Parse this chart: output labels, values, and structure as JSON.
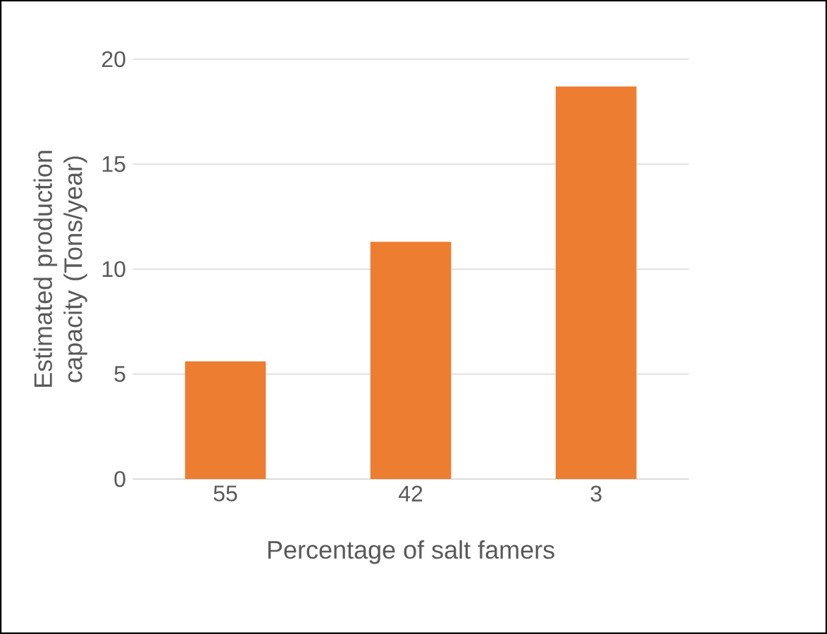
{
  "chart_data": {
    "type": "bar",
    "xlabel": "Percentage of salt famers",
    "ylabel": "Estimated production capacity (Tons/year)",
    "categories": [
      "55",
      "42",
      "3"
    ],
    "values": [
      5.6,
      11.3,
      18.7
    ],
    "color": "#ed7d31",
    "ylim": [
      0,
      20
    ],
    "yticks": [
      0,
      5,
      10,
      15,
      20
    ],
    "grid": "y"
  }
}
